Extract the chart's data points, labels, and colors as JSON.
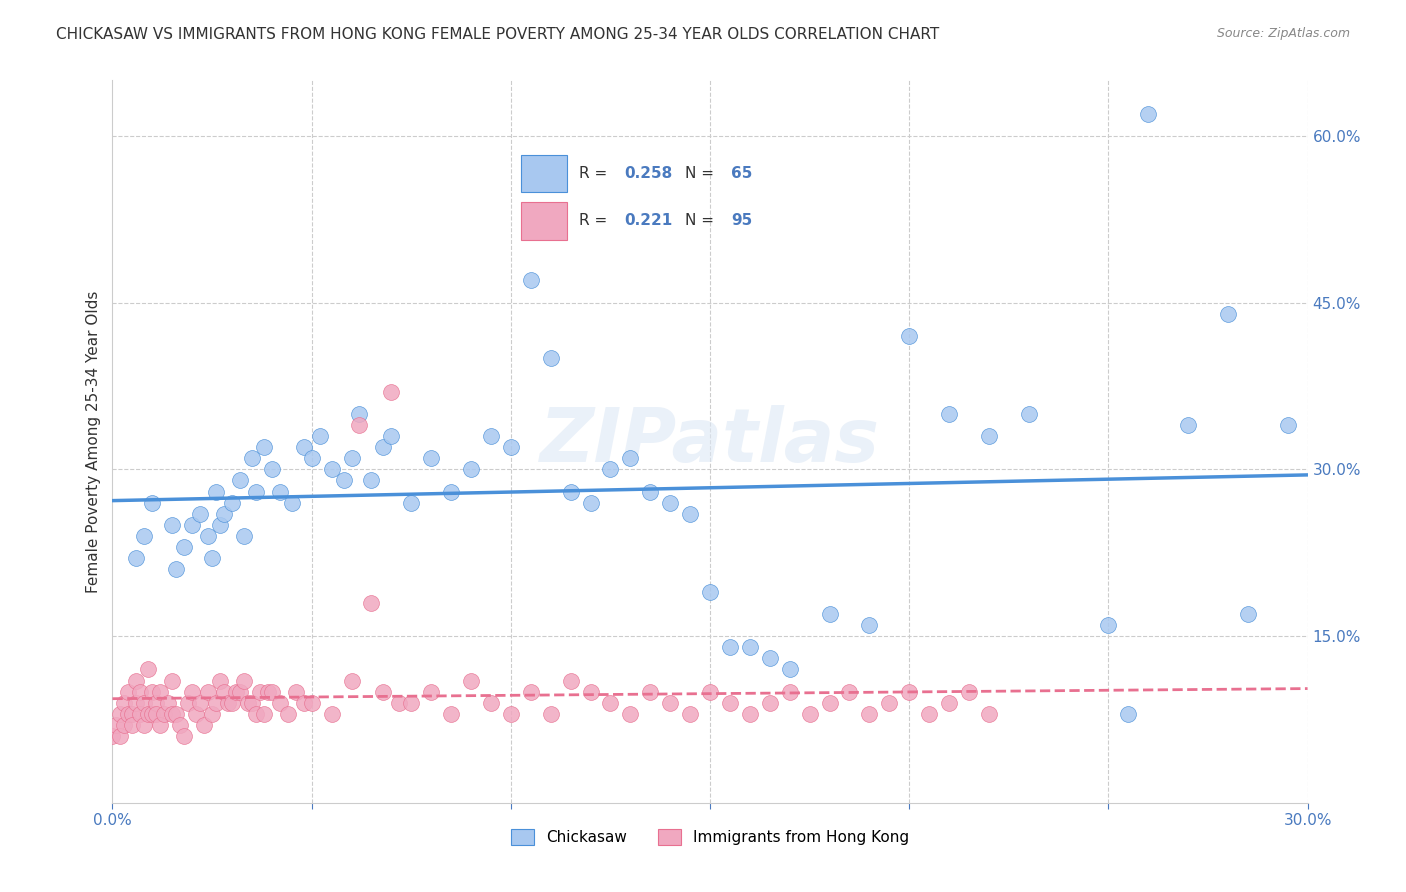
{
  "title": "CHICKASAW VS IMMIGRANTS FROM HONG KONG FEMALE POVERTY AMONG 25-34 YEAR OLDS CORRELATION CHART",
  "source": "Source: ZipAtlas.com",
  "ylabel": "Female Poverty Among 25-34 Year Olds",
  "xlim": [
    0.0,
    0.3
  ],
  "ylim": [
    0.0,
    0.65
  ],
  "chickasaw_R": "0.258",
  "chickasaw_N": "65",
  "hk_R": "0.221",
  "hk_N": "95",
  "chickasaw_color": "#a8c8f0",
  "hk_color": "#f0a8c0",
  "chickasaw_line_color": "#4a90d9",
  "hk_line_color": "#e87090",
  "watermark": "ZIPatlas",
  "background_color": "#ffffff",
  "legend_label_1": "Chickasaw",
  "legend_label_2": "Immigrants from Hong Kong",
  "chickasaw_x": [
    0.006,
    0.008,
    0.01,
    0.015,
    0.016,
    0.018,
    0.02,
    0.022,
    0.024,
    0.025,
    0.026,
    0.027,
    0.028,
    0.03,
    0.032,
    0.033,
    0.035,
    0.036,
    0.038,
    0.04,
    0.042,
    0.045,
    0.048,
    0.05,
    0.052,
    0.055,
    0.058,
    0.06,
    0.062,
    0.065,
    0.068,
    0.07,
    0.075,
    0.08,
    0.085,
    0.09,
    0.095,
    0.1,
    0.105,
    0.11,
    0.115,
    0.12,
    0.125,
    0.13,
    0.135,
    0.14,
    0.145,
    0.15,
    0.155,
    0.16,
    0.165,
    0.17,
    0.18,
    0.19,
    0.2,
    0.21,
    0.22,
    0.23,
    0.25,
    0.255,
    0.26,
    0.27,
    0.28,
    0.285,
    0.295
  ],
  "chickasaw_y": [
    0.22,
    0.24,
    0.27,
    0.25,
    0.21,
    0.23,
    0.25,
    0.26,
    0.24,
    0.22,
    0.28,
    0.25,
    0.26,
    0.27,
    0.29,
    0.24,
    0.31,
    0.28,
    0.32,
    0.3,
    0.28,
    0.27,
    0.32,
    0.31,
    0.33,
    0.3,
    0.29,
    0.31,
    0.35,
    0.29,
    0.32,
    0.33,
    0.27,
    0.31,
    0.28,
    0.3,
    0.33,
    0.32,
    0.47,
    0.4,
    0.28,
    0.27,
    0.3,
    0.31,
    0.28,
    0.27,
    0.26,
    0.19,
    0.14,
    0.14,
    0.13,
    0.12,
    0.17,
    0.16,
    0.42,
    0.35,
    0.33,
    0.35,
    0.16,
    0.08,
    0.62,
    0.34,
    0.44,
    0.17,
    0.34
  ],
  "hk_x": [
    0.0,
    0.001,
    0.002,
    0.002,
    0.003,
    0.003,
    0.004,
    0.004,
    0.005,
    0.005,
    0.006,
    0.006,
    0.007,
    0.007,
    0.008,
    0.008,
    0.009,
    0.009,
    0.01,
    0.01,
    0.011,
    0.011,
    0.012,
    0.012,
    0.013,
    0.014,
    0.015,
    0.015,
    0.016,
    0.017,
    0.018,
    0.019,
    0.02,
    0.021,
    0.022,
    0.023,
    0.024,
    0.025,
    0.026,
    0.027,
    0.028,
    0.029,
    0.03,
    0.031,
    0.032,
    0.033,
    0.034,
    0.035,
    0.036,
    0.037,
    0.038,
    0.039,
    0.04,
    0.042,
    0.044,
    0.046,
    0.048,
    0.05,
    0.055,
    0.06,
    0.062,
    0.065,
    0.068,
    0.07,
    0.072,
    0.075,
    0.08,
    0.085,
    0.09,
    0.095,
    0.1,
    0.105,
    0.11,
    0.115,
    0.12,
    0.125,
    0.13,
    0.135,
    0.14,
    0.145,
    0.15,
    0.155,
    0.16,
    0.165,
    0.17,
    0.175,
    0.18,
    0.185,
    0.19,
    0.195,
    0.2,
    0.205,
    0.21,
    0.215,
    0.22
  ],
  "hk_y": [
    0.06,
    0.07,
    0.08,
    0.06,
    0.09,
    0.07,
    0.1,
    0.08,
    0.08,
    0.07,
    0.11,
    0.09,
    0.1,
    0.08,
    0.09,
    0.07,
    0.12,
    0.08,
    0.08,
    0.1,
    0.09,
    0.08,
    0.1,
    0.07,
    0.08,
    0.09,
    0.11,
    0.08,
    0.08,
    0.07,
    0.06,
    0.09,
    0.1,
    0.08,
    0.09,
    0.07,
    0.1,
    0.08,
    0.09,
    0.11,
    0.1,
    0.09,
    0.09,
    0.1,
    0.1,
    0.11,
    0.09,
    0.09,
    0.08,
    0.1,
    0.08,
    0.1,
    0.1,
    0.09,
    0.08,
    0.1,
    0.09,
    0.09,
    0.08,
    0.11,
    0.34,
    0.18,
    0.1,
    0.37,
    0.09,
    0.09,
    0.1,
    0.08,
    0.11,
    0.09,
    0.08,
    0.1,
    0.08,
    0.11,
    0.1,
    0.09,
    0.08,
    0.1,
    0.09,
    0.08,
    0.1,
    0.09,
    0.08,
    0.09,
    0.1,
    0.08,
    0.09,
    0.1,
    0.08,
    0.09,
    0.1,
    0.08,
    0.09,
    0.1,
    0.08
  ]
}
